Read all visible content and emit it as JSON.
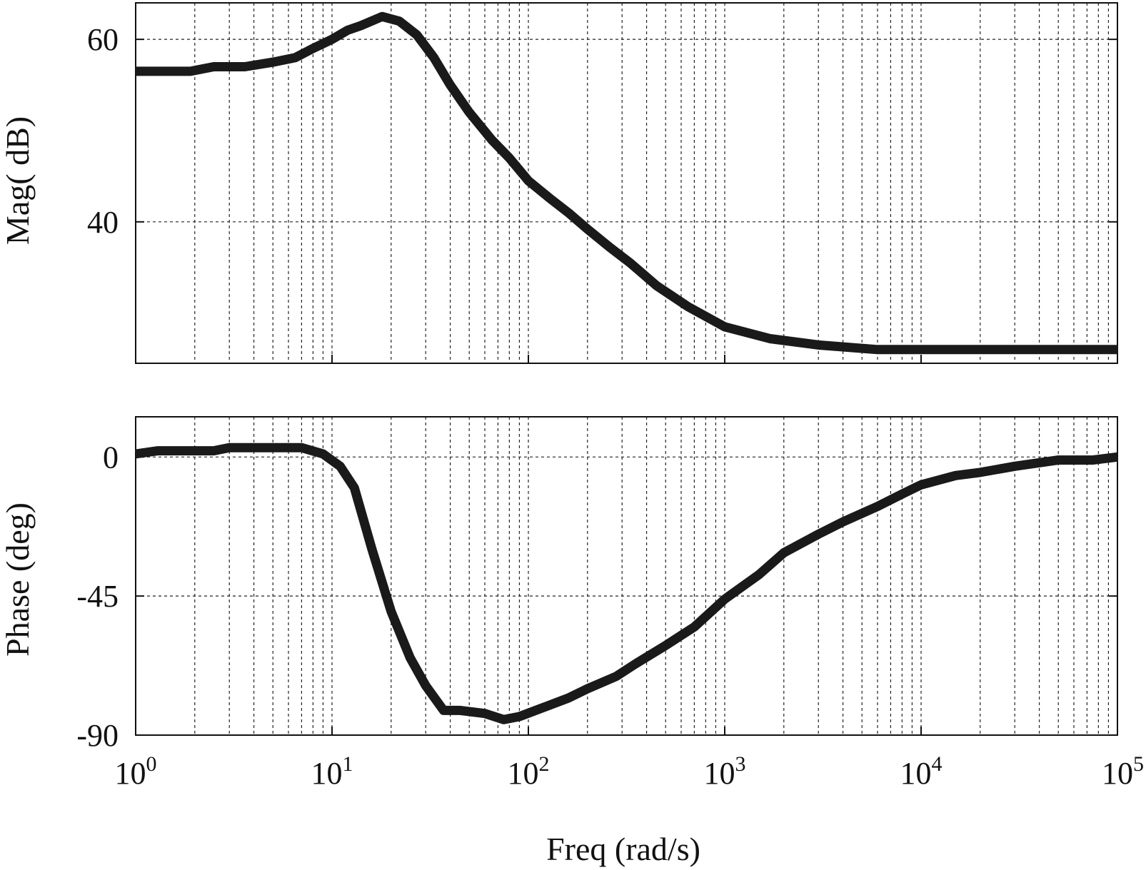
{
  "chart_data": {
    "type": "line",
    "xlabel": "Freq (rad/s)",
    "xscale": "log",
    "xlim": [
      1,
      100000
    ],
    "x_tick_labels": [
      {
        "base": "10",
        "exp": "0"
      },
      {
        "base": "10",
        "exp": "1"
      },
      {
        "base": "10",
        "exp": "2"
      },
      {
        "base": "10",
        "exp": "3"
      },
      {
        "base": "10",
        "exp": "4"
      },
      {
        "base": "10",
        "exp": "5"
      }
    ],
    "grid": true,
    "panels": [
      {
        "name": "magnitude",
        "ylabel": "Mag( dB)",
        "ylim": [
          24.5,
          64
        ],
        "yticks": [
          40,
          60
        ],
        "ytick_labels": [
          "40",
          "60"
        ],
        "series": [
          {
            "x": [
              1,
              1.9,
              2.5,
              3.6,
              5,
              6.5,
              8,
              10,
              12,
              14,
              18,
              22,
              27,
              33,
              40,
              50,
              65,
              80,
              100,
              130,
              160,
              200,
              260,
              330,
              450,
              650,
              1000,
              1700,
              3000,
              6000,
              10000,
              30000,
              100000
            ],
            "y": [
              56.5,
              56.5,
              57,
              57,
              57.5,
              58,
              59,
              60,
              61,
              61.5,
              62.5,
              62,
              60.5,
              58,
              55,
              52,
              49,
              47,
              44.5,
              42.5,
              41,
              39.2,
              37.2,
              35.5,
              33,
              30.7,
              28.5,
              27.2,
              26.5,
              26,
              26,
              26,
              26
            ]
          }
        ]
      },
      {
        "name": "phase",
        "ylabel": "Phase (deg)",
        "ylim": [
          -90,
          13
        ],
        "yticks": [
          -90,
          -45,
          0
        ],
        "ytick_labels": [
          "-90",
          "-45",
          "0"
        ],
        "series": [
          {
            "x": [
              1,
              1.3,
              1.8,
              2.5,
              3,
              5,
              7,
              9,
              11,
              13,
              16,
              20,
              25,
              30,
              37,
              45,
              60,
              75,
              90,
              120,
              160,
              200,
              280,
              350,
              500,
              700,
              1000,
              1500,
              2000,
              3000,
              4000,
              6000,
              8000,
              10000,
              15000,
              20000,
              30000,
              50000,
              75000,
              100000
            ],
            "y": [
              1,
              2,
              2,
              2,
              3,
              3,
              3,
              1,
              -3,
              -10,
              -30,
              -50,
              -65,
              -74,
              -82,
              -82,
              -83,
              -85,
              -84,
              -81,
              -78,
              -75,
              -71,
              -67,
              -61,
              -55,
              -46,
              -38,
              -31,
              -25,
              -21,
              -16,
              -12,
              -9,
              -6,
              -5,
              -3,
              -1,
              -1,
              0
            ]
          }
        ]
      }
    ]
  }
}
